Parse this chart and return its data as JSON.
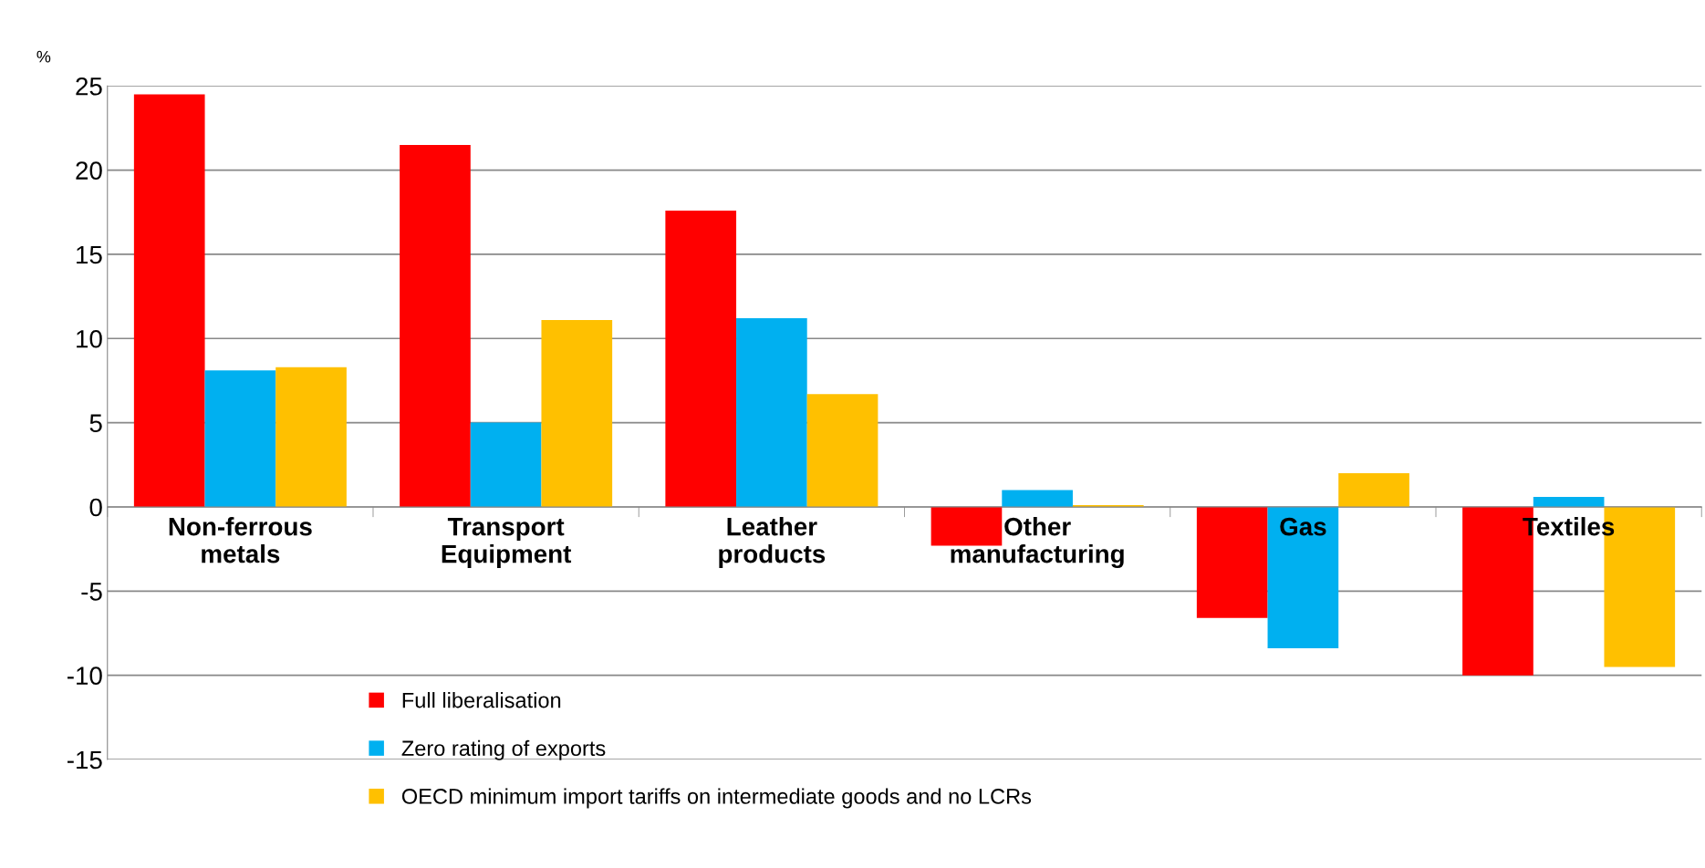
{
  "chart_data": {
    "type": "bar",
    "ylabel": "%",
    "categories": [
      "Non-ferrous\nmetals",
      "Transport\nEquipment",
      "Leather\nproducts",
      "Other\nmanufacturing",
      "Gas",
      "Textiles"
    ],
    "series": [
      {
        "name": "Full liberalisation",
        "color": "#ff0000",
        "values": [
          24.5,
          21.5,
          17.6,
          -2.3,
          -6.6,
          -10.0
        ]
      },
      {
        "name": "Zero rating of exports",
        "color": "#00b0f0",
        "values": [
          8.1,
          5.0,
          11.2,
          1.0,
          -8.4,
          0.6
        ]
      },
      {
        "name": "OECD minimum import tariffs on intermediate goods and no LCRs",
        "color": "#ffc000",
        "values": [
          8.3,
          11.1,
          6.7,
          0.1,
          2.0,
          -9.5
        ]
      }
    ],
    "ylim": [
      -15,
      25
    ],
    "yticks": [
      -15,
      -10,
      -5,
      0,
      5,
      10,
      15,
      20,
      25
    ],
    "grid": "y",
    "legend": "bottom"
  }
}
